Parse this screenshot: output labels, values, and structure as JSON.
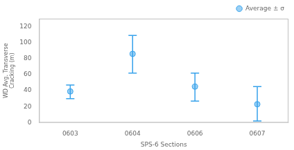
{
  "chart_data": {
    "type": "errorbar",
    "xlabel": "SPS-6 Sections",
    "ylabel": "WD Avg. Transverse\nCracking (m)",
    "categories": [
      "0603",
      "0604",
      "0606",
      "0607"
    ],
    "series": [
      {
        "name": "Average ± σ",
        "values": [
          39,
          86,
          45,
          23
        ],
        "upper": [
          47,
          109,
          62,
          45
        ],
        "lower": [
          30,
          62,
          27,
          2
        ]
      }
    ],
    "ylim": [
      0,
      130
    ],
    "yticks": [
      0,
      20,
      40,
      60,
      80,
      100,
      120
    ],
    "grid": false,
    "legend": "upper right"
  }
}
